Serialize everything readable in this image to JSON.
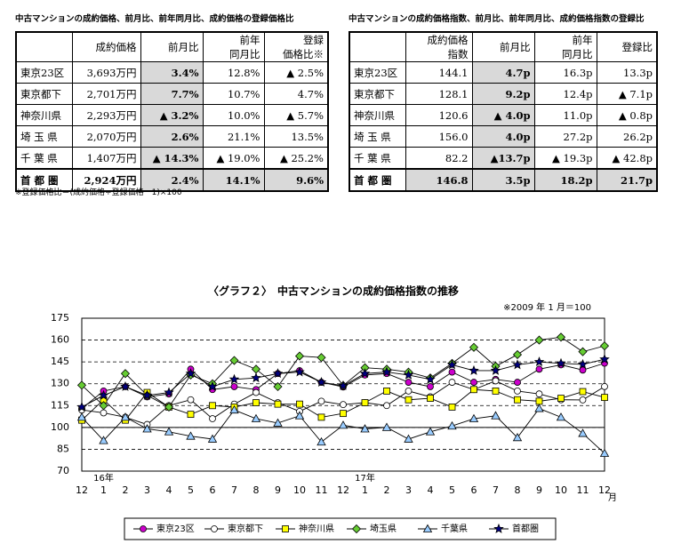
{
  "tables": [
    {
      "title": "中古マンションの成約価格、前月比、前年同月比、成約価格の登録価格比",
      "headers": [
        null,
        "成約価格",
        "前月比",
        "前年\n同月比",
        "登録\n価格比※"
      ],
      "rows": [
        [
          "東京23区",
          "3,693万円",
          "3.4%",
          "12.8%",
          "▲ 2.5%"
        ],
        [
          "東京都下",
          "2,701万円",
          "7.7%",
          "10.7%",
          "4.7%"
        ],
        [
          "神奈川県",
          "2,293万円",
          "▲ 3.2%",
          "10.0%",
          "▲ 5.7%"
        ],
        [
          "埼 玉 県",
          "2,070万円",
          "2.6%",
          "21.1%",
          "13.5%"
        ],
        [
          "千 葉 県",
          "1,407万円",
          "▲ 14.3%",
          "▲ 19.0%",
          "▲ 25.2%"
        ],
        [
          "首 都 圏",
          "2,924万円",
          "2.4%",
          "14.1%",
          "9.6%"
        ]
      ],
      "note": "※登録価格比＝(成約価格÷登録価格－1)×100"
    },
    {
      "title": "中古マンションの成約価格指数、前月比、前年同月比、成約価格指数の登録比",
      "headers": [
        null,
        "成約価格\n指数",
        "前月比",
        "前年\n同月比",
        "登録比"
      ],
      "rows": [
        [
          "東京23区",
          "144.1",
          "4.7p",
          "16.3p",
          "13.3p"
        ],
        [
          "東京都下",
          "128.1",
          "9.2p",
          "12.4p",
          "▲ 7.1p"
        ],
        [
          "神奈川県",
          "120.6",
          "▲ 4.0p",
          "11.0p",
          "▲ 0.8p"
        ],
        [
          "埼 玉 県",
          "156.0",
          "4.0p",
          "27.2p",
          "26.2p"
        ],
        [
          "千 葉 県",
          "82.2",
          "▲13.7p",
          "▲ 19.3p",
          "▲ 42.8p"
        ],
        [
          "首 都 圏",
          "146.8",
          "3.5p",
          "18.2p",
          "21.7p"
        ]
      ]
    }
  ],
  "chart_data": {
    "type": "line",
    "title": "〈グラフ２〉　中古マンションの成約価格指数の推移",
    "note": "※2009 年 1 月＝100",
    "categories": [
      "12",
      "1",
      "2",
      "3",
      "4",
      "5",
      "6",
      "7",
      "8",
      "9",
      "10",
      "11",
      "12",
      "1",
      "2",
      "3",
      "4",
      "5",
      "6",
      "7",
      "8",
      "9",
      "10",
      "11",
      "12"
    ],
    "year_labels": [
      null,
      "16年",
      null,
      null,
      null,
      null,
      null,
      null,
      null,
      null,
      null,
      null,
      null,
      "17年",
      null,
      null,
      null,
      null,
      null,
      null,
      null,
      null,
      null,
      null,
      null
    ],
    "x_unit": "月",
    "ylim": [
      70,
      175
    ],
    "yticks": [
      70,
      85,
      100,
      115,
      130,
      145,
      160,
      175
    ],
    "grid": true,
    "baseline": 100,
    "series": [
      {
        "name": "東京23区",
        "color": "#cc00cc",
        "marker": "circle",
        "values": [
          113,
          125,
          128,
          121,
          123,
          140,
          126,
          128,
          126,
          137,
          139,
          131,
          127.8,
          136,
          137,
          131,
          128,
          138,
          131,
          133,
          131,
          140,
          143,
          139.4,
          144.1
        ]
      },
      {
        "name": "東京都下",
        "color": "#ffffff",
        "marker": "circle",
        "values": [
          112,
          110,
          107,
          102,
          115,
          119,
          106,
          116,
          124,
          117,
          111,
          118,
          115.7,
          117,
          115,
          125,
          121,
          131,
          126,
          132,
          125,
          123,
          119,
          118.9,
          128.1
        ]
      },
      {
        "name": "神奈川県",
        "color": "#ffff00",
        "marker": "square",
        "values": [
          105,
          119,
          105,
          124,
          114,
          109,
          115,
          114,
          117,
          116,
          116,
          107,
          109.6,
          117,
          125,
          119,
          120,
          114,
          126,
          125,
          119,
          118,
          120,
          124.6,
          120.6
        ]
      },
      {
        "name": "埼玉県",
        "color": "#66cc33",
        "marker": "diamond",
        "values": [
          129,
          115,
          137,
          122,
          114,
          136,
          130,
          146,
          140,
          128,
          149,
          148,
          128.8,
          141,
          140,
          138,
          134,
          144,
          155,
          142,
          150,
          160,
          162,
          152.0,
          156.0
        ]
      },
      {
        "name": "千葉県",
        "color": "#99ccff",
        "marker": "triangle",
        "values": [
          107,
          91,
          107,
          99,
          97,
          94,
          92,
          112,
          106,
          103,
          108,
          90,
          101.5,
          99,
          100,
          92,
          97,
          101,
          106,
          108,
          93,
          113,
          107,
          95.9,
          82.2
        ]
      },
      {
        "name": "首都圏",
        "color": "#000080",
        "marker": "star",
        "values": [
          114,
          122,
          128,
          122,
          124,
          137,
          128,
          133,
          134,
          137,
          138,
          131,
          128.6,
          137,
          138,
          136,
          133,
          143,
          139,
          139,
          143,
          145,
          144,
          143.3,
          146.8
        ]
      }
    ]
  }
}
